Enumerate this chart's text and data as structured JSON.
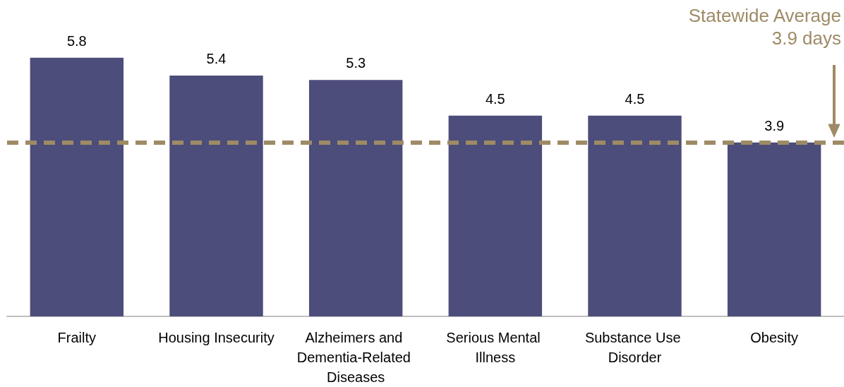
{
  "chart_data": {
    "type": "bar",
    "categories": [
      "Frailty",
      "Housing Insecurity",
      "Alzheimers and Dementia-Related Diseases",
      "Serious Mental Illness",
      "Substance Use Disorder",
      "Obesity"
    ],
    "values": [
      5.8,
      5.4,
      5.3,
      4.5,
      4.5,
      3.9
    ],
    "color": "#4d4d7b",
    "data_labels": true,
    "ref_lines": [
      {
        "axis": "y",
        "value": 3.9,
        "label": "Statewide Average\n3.9 days",
        "color": "#9e8b66",
        "line_style": "dashed"
      }
    ]
  }
}
